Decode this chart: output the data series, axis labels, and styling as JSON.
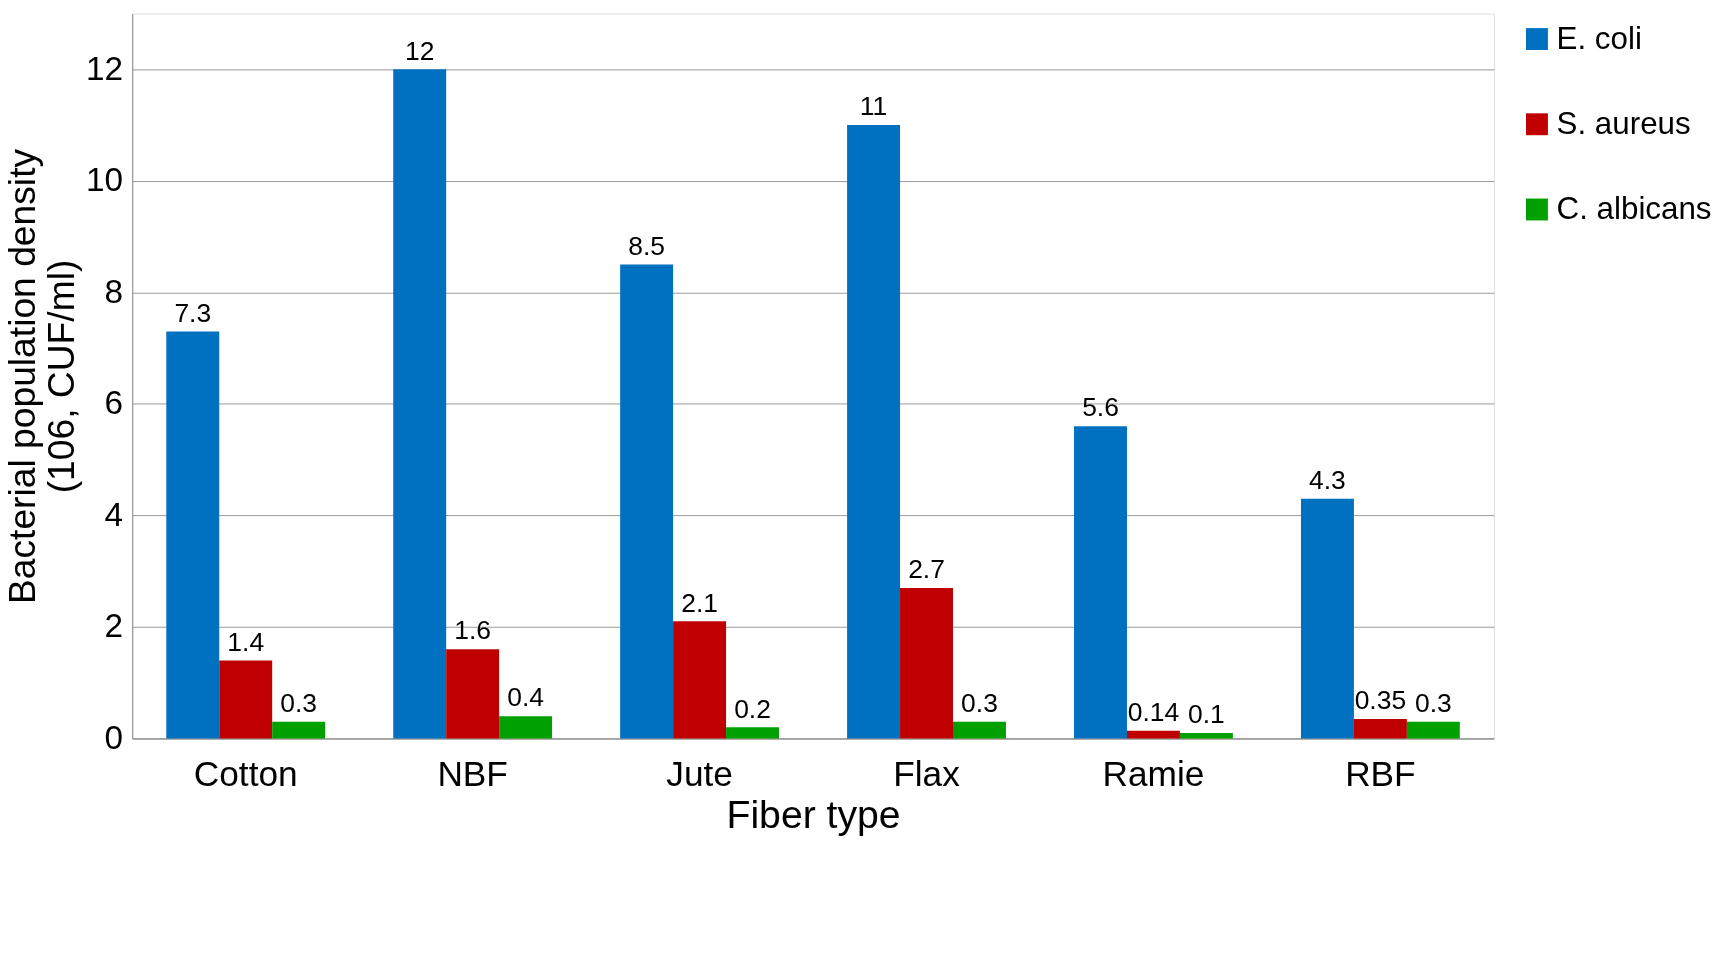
{
  "chart_data": {
    "type": "bar",
    "xlabel": "Fiber type",
    "ylabel": "Bacterial population density\n(106, CUF/ml)",
    "categories": [
      "Cotton",
      "NBF",
      "Jute",
      "Flax",
      "Ramie",
      "RBF"
    ],
    "series": [
      {
        "name": "E. coli",
        "color": "#0070c0",
        "values": [
          7.3,
          12,
          8.5,
          11,
          5.6,
          4.3
        ]
      },
      {
        "name": "S. aureus",
        "color": "#c00000",
        "values": [
          1.4,
          1.6,
          2.1,
          2.7,
          0.14,
          0.35
        ]
      },
      {
        "name": "C. albicans",
        "color": "#00a000",
        "values": [
          0.3,
          0.4,
          0.2,
          0.3,
          0.1,
          0.3
        ]
      }
    ],
    "ylim": [
      0,
      13
    ],
    "yticks": [
      0,
      2,
      4,
      6,
      8,
      10,
      12
    ],
    "grid": "y",
    "legend": "top right",
    "data_labels": true
  }
}
